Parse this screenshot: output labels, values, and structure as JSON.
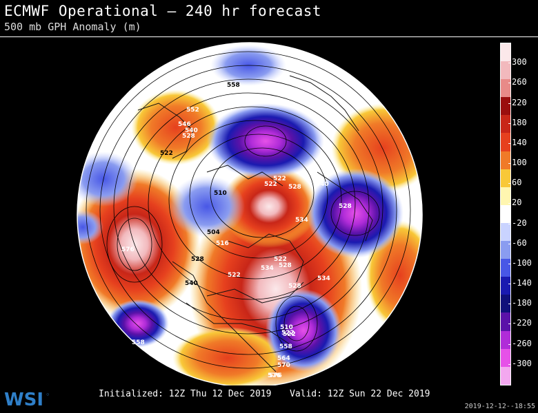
{
  "header": {
    "title": "ECMWF Operational – 240 hr forecast",
    "subtitle": "500 mb GPH Anomaly (m)"
  },
  "colorbar": {
    "ticks": [
      "300",
      "260",
      "220",
      "180",
      "140",
      "100",
      "60",
      "20",
      "-20",
      "-60",
      "-100",
      "-140",
      "-180",
      "-220",
      "-260",
      "-300"
    ],
    "colors": [
      "#fbe8ea",
      "#f2b9bd",
      "#e88a88",
      "#9a0e0e",
      "#c82618",
      "#e6401e",
      "#f07a28",
      "#f8c838",
      "#fff6b0",
      "#ffffff",
      "#c9d3ff",
      "#8a9cf0",
      "#4857e6",
      "#1a1ab0",
      "#10107a",
      "#5a12a8",
      "#b02cd8",
      "#e651e8",
      "#f3a8ef"
    ]
  },
  "contours": {
    "labels": [
      {
        "text": "558"
      },
      {
        "text": "552"
      },
      {
        "text": "546"
      },
      {
        "text": "540"
      },
      {
        "text": "528"
      },
      {
        "text": "522"
      },
      {
        "text": "576"
      },
      {
        "text": "510"
      },
      {
        "text": "504"
      },
      {
        "text": "516"
      },
      {
        "text": "528"
      },
      {
        "text": "540"
      },
      {
        "text": "522"
      },
      {
        "text": "528"
      },
      {
        "text": "522"
      },
      {
        "text": "534"
      },
      {
        "text": "528"
      },
      {
        "text": "522"
      },
      {
        "text": "528"
      },
      {
        "text": "534"
      },
      {
        "text": "558"
      },
      {
        "text": "576"
      },
      {
        "text": "522"
      },
      {
        "text": "528"
      },
      {
        "text": "510"
      },
      {
        "text": "522"
      },
      {
        "text": "558"
      },
      {
        "text": "564"
      },
      {
        "text": "570"
      },
      {
        "text": "576"
      },
      {
        "text": "522"
      },
      {
        "text": "540"
      },
      {
        "text": "534"
      }
    ]
  },
  "footer": {
    "initialized": "Initialized: 12Z Thu 12 Dec 2019",
    "valid": "Valid: 12Z Sun 22 Dec 2019",
    "brand": "WSI",
    "timestamp": "2019-12-12--18:55"
  }
}
